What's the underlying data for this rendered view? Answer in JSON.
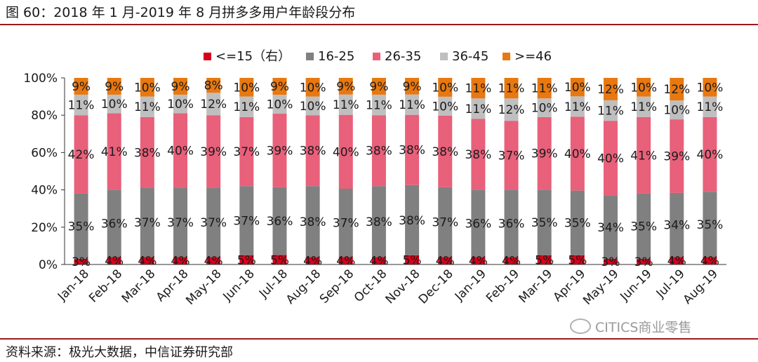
{
  "title": "图 60：2018 年 1 月-2019 年 8 月拼多多用户年龄段分布",
  "source": "资料来源：极光大数据，中信证券研究部",
  "watermark": "CITICS商业零售",
  "chart_data": {
    "type": "bar",
    "stacked": true,
    "percent": true,
    "categories": [
      "Jan-18",
      "Feb-18",
      "Mar-18",
      "Apr-18",
      "May-18",
      "Jun-18",
      "Jul-18",
      "Aug-18",
      "Sep-18",
      "Oct-18",
      "Nov-18",
      "Dec-18",
      "Jan-19",
      "Feb-19",
      "Mar-19",
      "Apr-19",
      "May-19",
      "Jun-19",
      "Jul-19",
      "Aug-19"
    ],
    "yticks": [
      "0%",
      "20%",
      "40%",
      "60%",
      "80%",
      "100%"
    ],
    "ylim": [
      0,
      100
    ],
    "legend_position": "top",
    "series": [
      {
        "name": "<=15（右）",
        "color": "#d9001b",
        "values": [
          3,
          4,
          4,
          4,
          4,
          5,
          5,
          4,
          4,
          4,
          5,
          4,
          4,
          4,
          5,
          5,
          3,
          3,
          4,
          4
        ],
        "labels": [
          "3%",
          "4%",
          "4%",
          "4%",
          "4%",
          "5%",
          "5%",
          "4%",
          "4%",
          "4%",
          "5%",
          "4%",
          "4%",
          "4%",
          "5%",
          "5%",
          "3%",
          "3%",
          "4%",
          "4%"
        ]
      },
      {
        "name": "16-25",
        "color": "#808080",
        "values": [
          35,
          36,
          37,
          37,
          37,
          37,
          36,
          38,
          37,
          38,
          38,
          37,
          36,
          36,
          35,
          35,
          34,
          35,
          34,
          35
        ],
        "labels": [
          "35%",
          "36%",
          "37%",
          "37%",
          "37%",
          "37%",
          "36%",
          "38%",
          "37%",
          "38%",
          "38%",
          "37%",
          "36%",
          "36%",
          "35%",
          "35%",
          "34%",
          "35%",
          "34%",
          "35%"
        ]
      },
      {
        "name": "26-35",
        "color": "#e8607a",
        "values": [
          42,
          41,
          38,
          40,
          39,
          37,
          39,
          38,
          40,
          38,
          38,
          38,
          38,
          37,
          39,
          40,
          40,
          41,
          39,
          40
        ],
        "labels": [
          "42%",
          "41%",
          "38%",
          "40%",
          "39%",
          "37%",
          "39%",
          "38%",
          "40%",
          "38%",
          "38%",
          "38%",
          "38%",
          "37%",
          "39%",
          "40%",
          "40%",
          "41%",
          "39%",
          "40%"
        ]
      },
      {
        "name": "36-45",
        "color": "#bfbfbf",
        "values": [
          11,
          10,
          11,
          10,
          12,
          11,
          10,
          10,
          11,
          11,
          11,
          10,
          11,
          12,
          10,
          11,
          11,
          11,
          10,
          11
        ],
        "labels": [
          "11%",
          "10%",
          "11%",
          "10%",
          "12%",
          "11%",
          "10%",
          "10%",
          "11%",
          "11%",
          "11%",
          "10%",
          "11%",
          "12%",
          "10%",
          "11%",
          "11%",
          "11%",
          "10%",
          "11%"
        ]
      },
      {
        "name": ">=46",
        "color": "#e8780f",
        "values": [
          9,
          9,
          10,
          9,
          8,
          10,
          9,
          10,
          9,
          9,
          9,
          10,
          11,
          11,
          11,
          10,
          12,
          10,
          12,
          10
        ],
        "labels": [
          "9%",
          "9%",
          "10%",
          "9%",
          "8%",
          "10%",
          "9%",
          "10%",
          "9%",
          "9%",
          "9%",
          "10%",
          "11%",
          "11%",
          "11%",
          "10%",
          "12%",
          "10%",
          "12%",
          "10%"
        ]
      }
    ]
  }
}
